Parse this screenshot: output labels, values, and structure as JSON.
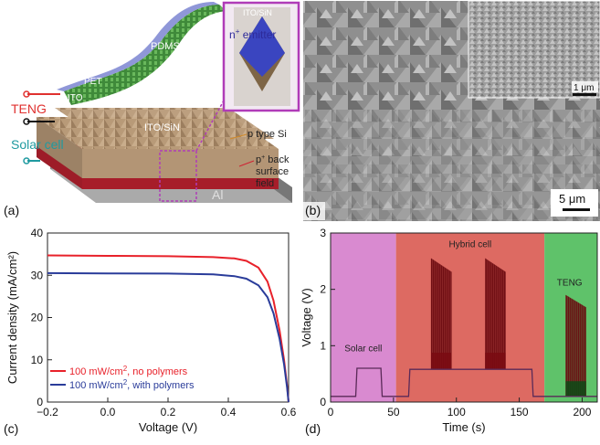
{
  "panels": {
    "a": {
      "label": "(a)",
      "texts": {
        "pdms": "PDMS",
        "pet": "PET",
        "ito": "ITO",
        "teng": "TENG",
        "solar_cell": "Solar cell",
        "ito_sin": "ITO/SiN",
        "p_type_si": "p type Si",
        "p_plus_back": "p",
        "p_plus_sup": "+",
        "back_rest": " back",
        "surface": "surface",
        "field": "field",
        "al": "Al",
        "inset_ito_sin": "ITO/SiN",
        "n_plus": "n",
        "n_plus_sup": "+",
        "emitter": " emitter"
      },
      "colors": {
        "teng": "#e0312f",
        "solar": "#1f9aa0",
        "inset_border": "#b03cb8",
        "red_layer": "#cf2233",
        "pyramid": "#b99a74"
      }
    },
    "b": {
      "label": "(b)",
      "scalebar_main": "5 μm",
      "scalebar_inset": "1 μm"
    },
    "c": {
      "label": "(c)",
      "chart_data": {
        "type": "line",
        "xlabel": "Voltage (V)",
        "ylabel": "Current density (mA/cm²)",
        "xlim": [
          -0.2,
          0.6
        ],
        "ylim": [
          0,
          40
        ],
        "xticks": [
          "−0.2",
          "0.0",
          "0.2",
          "0.4",
          "0.6"
        ],
        "yticks": [
          "0",
          "10",
          "20",
          "30",
          "40"
        ],
        "grid": false,
        "legend_position": "bottom-left",
        "series": [
          {
            "name": "100 mW/cm², no polymers",
            "name_base": "100 mW/cm",
            "name_sup": "2",
            "name_rest": ", no polymers",
            "color": "#e8212a",
            "x": [
              -0.2,
              0.0,
              0.2,
              0.35,
              0.42,
              0.46,
              0.5,
              0.53,
              0.55,
              0.57,
              0.585,
              0.595,
              0.6
            ],
            "y": [
              34.7,
              34.6,
              34.5,
              34.3,
              34.0,
              33.4,
              31.8,
              28.5,
              24.0,
              17.0,
              10.0,
              4.0,
              0.0
            ]
          },
          {
            "name": "100 mW/cm², with polymers",
            "name_base": "100 mW/cm",
            "name_sup": "2",
            "name_rest": ", with polymers",
            "color": "#2a3c9a",
            "x": [
              -0.2,
              0.0,
              0.2,
              0.35,
              0.42,
              0.46,
              0.5,
              0.53,
              0.55,
              0.57,
              0.585,
              0.595,
              0.6
            ],
            "y": [
              30.5,
              30.45,
              30.4,
              30.2,
              29.8,
              29.2,
              27.6,
              24.8,
              21.0,
              15.0,
              9.0,
              3.5,
              0.0
            ]
          }
        ]
      }
    },
    "d": {
      "label": "(d)",
      "chart_data": {
        "type": "line",
        "xlabel": "Time (s)",
        "ylabel": "Voltage (V)",
        "xlim": [
          0,
          212
        ],
        "ylim": [
          0,
          3
        ],
        "xticks": [
          "0",
          "50",
          "100",
          "150",
          "200"
        ],
        "yticks": [
          "0",
          "1",
          "2",
          "3"
        ],
        "grid": false,
        "regions": [
          {
            "label": "Solar cell",
            "from": 0,
            "to": 52,
            "color": "#d98ad0"
          },
          {
            "label": "Hybrid cell",
            "from": 52,
            "to": 170,
            "color": "#dd6a62"
          },
          {
            "label": "TENG",
            "from": 170,
            "to": 212,
            "color": "#5fc26a"
          }
        ],
        "series": [
          {
            "name": "",
            "x": [
              0,
              20,
              21,
              40,
              41,
              62,
              63,
              160,
              161,
              212
            ],
            "y": [
              0.1,
              0.1,
              0.6,
              0.6,
              0.1,
              0.1,
              0.58,
              0.58,
              0.1,
              0.1
            ]
          }
        ],
        "pulse_bursts": [
          {
            "from": 80,
            "to": 96,
            "max": 2.55,
            "base": 0.58
          },
          {
            "from": 123,
            "to": 139,
            "max": 2.55,
            "base": 0.58
          },
          {
            "from": 187,
            "to": 203,
            "max": 1.9,
            "base": 0.1
          }
        ]
      }
    }
  }
}
